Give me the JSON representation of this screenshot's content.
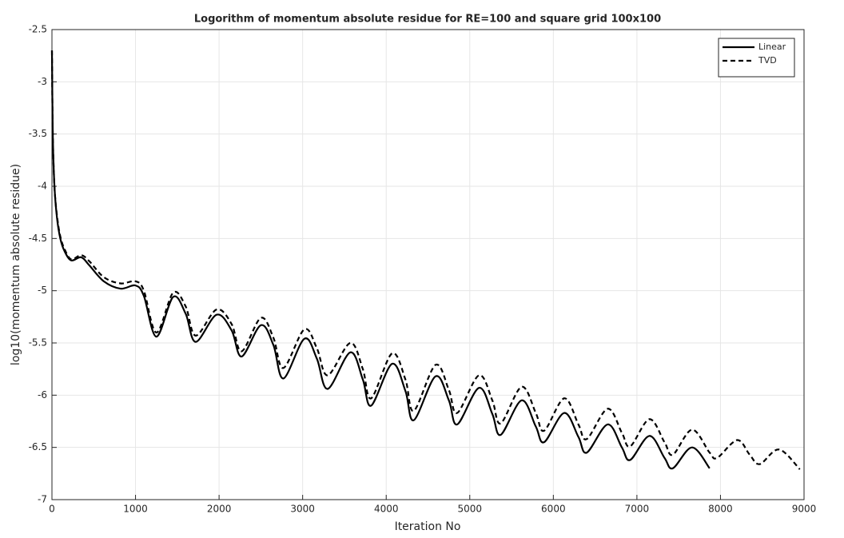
{
  "chart_data": {
    "type": "line",
    "title": "Logorithm of momentum absolute residue for RE=100 and square grid 100x100",
    "x_label": "Iteration No",
    "y_label": "log10(momentum absolute residue)",
    "x": [
      0,
      10,
      30,
      60,
      100,
      150,
      230,
      350,
      450,
      620,
      820,
      1000,
      1100,
      1250,
      1450,
      1600,
      1720,
      1970,
      2150,
      2270,
      2500,
      2650,
      2770,
      3020,
      3170,
      3300,
      3570,
      3720,
      3820,
      4070,
      4230,
      4330,
      4590,
      4750,
      4850,
      5110,
      5270,
      5370,
      5620,
      5790,
      5890,
      6130,
      6300,
      6400,
      6650,
      6820,
      6920,
      7150,
      7330,
      7430,
      7660,
      7870,
      7960,
      8200,
      8350,
      8470,
      8700,
      8950
    ],
    "series": [
      {
        "name": "Linear",
        "color": "#000000",
        "dash": "solid",
        "values": [
          -2.7,
          -3.5,
          -4.0,
          -4.3,
          -4.5,
          -4.62,
          -4.71,
          -4.68,
          -4.76,
          -4.91,
          -4.98,
          -4.95,
          -5.05,
          -5.44,
          -5.06,
          -5.22,
          -5.49,
          -5.23,
          -5.38,
          -5.63,
          -5.33,
          -5.52,
          -5.84,
          -5.46,
          -5.65,
          -5.94,
          -5.59,
          -5.85,
          -6.1,
          -5.7,
          -5.96,
          -6.24,
          -5.82,
          -6.05,
          -6.28,
          -5.93,
          -6.18,
          -6.38,
          -6.05,
          -6.3,
          -6.45,
          -6.17,
          -6.4,
          -6.55,
          -6.28,
          -6.5,
          -6.62,
          -6.39,
          -6.6,
          -6.7,
          -6.5,
          -6.7,
          null,
          null,
          null,
          null,
          null,
          null
        ]
      },
      {
        "name": "TVD",
        "color": "#000000",
        "dash": "dashed",
        "values": [
          -2.7,
          -3.5,
          -4.0,
          -4.28,
          -4.48,
          -4.6,
          -4.7,
          -4.66,
          -4.72,
          -4.87,
          -4.93,
          -4.91,
          -5.0,
          -5.4,
          -5.02,
          -5.15,
          -5.43,
          -5.18,
          -5.32,
          -5.58,
          -5.26,
          -5.45,
          -5.74,
          -5.37,
          -5.55,
          -5.81,
          -5.5,
          -5.75,
          -6.03,
          -5.6,
          -5.85,
          -6.15,
          -5.71,
          -5.95,
          -6.17,
          -5.81,
          -6.05,
          -6.27,
          -5.92,
          -6.17,
          -6.34,
          -6.03,
          -6.28,
          -6.42,
          -6.13,
          -6.36,
          -6.49,
          -6.23,
          -6.45,
          -6.57,
          -6.33,
          -6.55,
          -6.6,
          -6.43,
          -6.57,
          -6.66,
          -6.52,
          -6.71
        ]
      }
    ],
    "xlim": [
      0,
      9000
    ],
    "xticks": [
      0,
      1000,
      2000,
      3000,
      4000,
      5000,
      6000,
      7000,
      8000,
      9000
    ],
    "ylim": [
      -7,
      -2.5
    ],
    "yticks": [
      -7,
      -6.5,
      -6,
      -5.5,
      -5,
      -4.5,
      -4,
      -3.5,
      -3,
      -2.5
    ],
    "grid": true,
    "legend": "northeast"
  }
}
